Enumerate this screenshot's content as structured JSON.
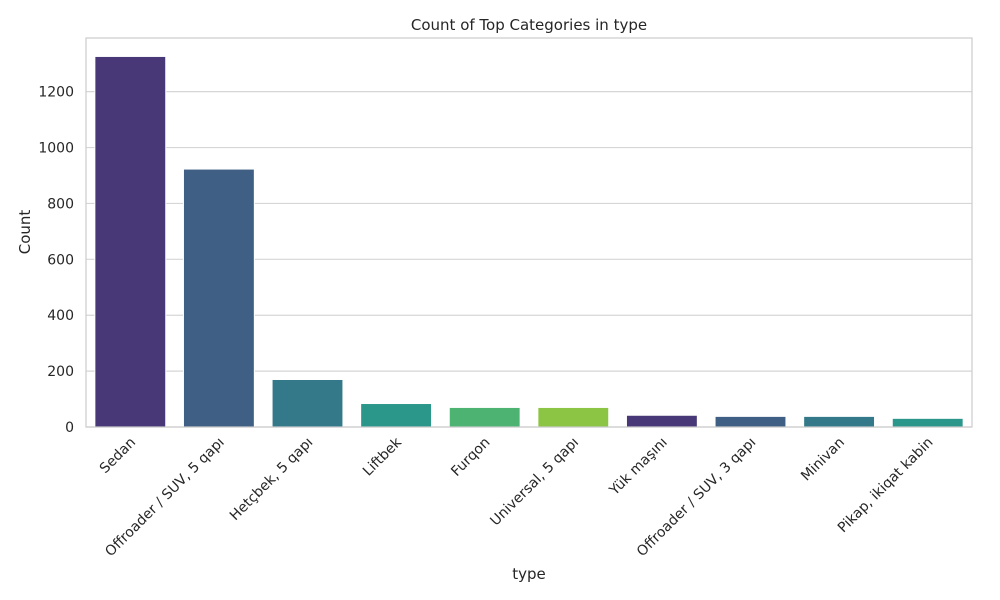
{
  "chart_data": {
    "type": "bar",
    "title": "Count of Top Categories in type",
    "xlabel": "type",
    "ylabel": "Count",
    "categories": [
      "Sedan",
      "Offroader / SUV, 5 qapı",
      "Hetçbek, 5 qapı",
      "Liftbek",
      "Furqon",
      "Universal, 5 qapı",
      "Yük maşını",
      "Offroader / SUV, 3 qapı",
      "Minivan",
      "Pikap, ikiqat kabin"
    ],
    "values": [
      1326,
      923,
      170,
      84,
      70,
      70,
      42,
      38,
      38,
      31
    ],
    "colors": [
      "#483877",
      "#405f84",
      "#33798a",
      "#2a978a",
      "#4db372",
      "#8cc443",
      "#483877",
      "#405f84",
      "#33798a",
      "#2a978a"
    ],
    "ylim": [
      0,
      1392
    ],
    "yticks": [
      0,
      200,
      400,
      600,
      800,
      1000,
      1200
    ],
    "grid": true,
    "x_tick_rotation_deg": 45
  }
}
